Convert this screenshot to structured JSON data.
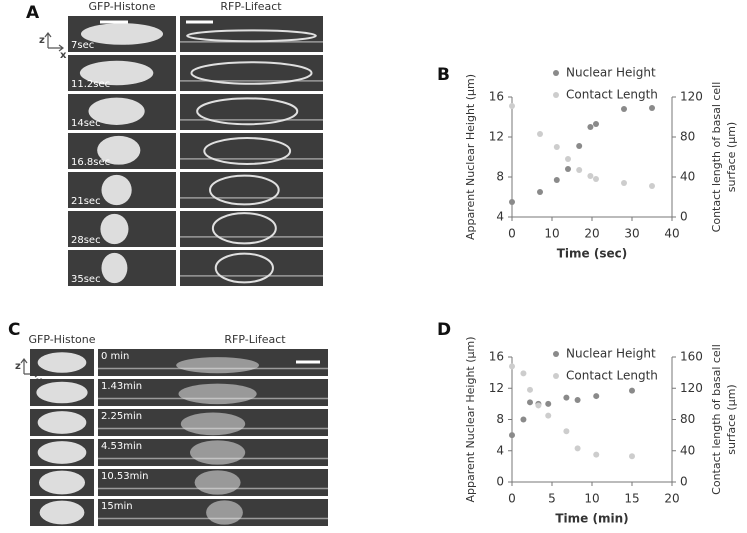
{
  "panels": [
    {
      "label": "A",
      "columns": [
        "GFP-Histone",
        "RFP-Lifeact"
      ],
      "times": [
        "7sec",
        "11.2sec",
        "14sec",
        "16.8sec",
        "21sec",
        "28sec",
        "35sec"
      ]
    },
    {
      "label": "C",
      "columns": [
        "GFP-Histone",
        "RFP-Lifeact"
      ],
      "times": [
        "0 min",
        "1.43min",
        "2.25min",
        "4.53min",
        "10.53min",
        "15min"
      ]
    }
  ],
  "axis_icon": [
    "z",
    "x"
  ],
  "chart_data": [
    {
      "type": "scatter",
      "label": "B",
      "xlabel": "Time (sec)",
      "ylabel": "Apparent Nuclear Height (µm)",
      "y2label": [
        "Contact length of basal cell",
        "surface (µm)"
      ],
      "x": [
        0,
        7,
        11.2,
        14,
        16.8,
        19.6,
        21,
        28,
        35
      ],
      "series": [
        {
          "name": "Nuclear Height",
          "color": "#8a8a8a",
          "values": [
            5.5,
            6.5,
            7.7,
            8.8,
            11.1,
            13,
            13.3,
            14.8,
            14.9
          ]
        },
        {
          "name": "Contact Length",
          "color": "#cdcdcd",
          "axis": "y2",
          "values": [
            111,
            83,
            70,
            58,
            47,
            41,
            38,
            34,
            31
          ]
        }
      ],
      "xlim": [
        0,
        40
      ],
      "xticks": [
        0,
        10,
        20,
        30,
        40
      ],
      "ylim": [
        4,
        16
      ],
      "yticks": [
        4,
        8,
        12,
        16
      ],
      "y2lim": [
        0,
        120
      ],
      "y2ticks": [
        0,
        40,
        80,
        120
      ]
    },
    {
      "type": "scatter",
      "label": "D",
      "xlabel": "Time (min)",
      "ylabel": "Apparent Nuclear Height (µm)",
      "y2label": [
        "Contact length of basal cell",
        "surface (µm)"
      ],
      "x": [
        0,
        1.43,
        2.25,
        3.3,
        4.53,
        6.8,
        8.2,
        10.53,
        15
      ],
      "series": [
        {
          "name": "Nuclear Height",
          "color": "#8a8a8a",
          "values": [
            6,
            8,
            10.2,
            10,
            10,
            10.8,
            10.5,
            11,
            11.7
          ]
        },
        {
          "name": "Contact Length",
          "color": "#cdcdcd",
          "axis": "y2",
          "values": [
            148,
            139,
            118,
            98,
            85,
            65,
            43,
            35,
            33
          ]
        }
      ],
      "xlim": [
        0,
        20
      ],
      "xticks": [
        0,
        5,
        10,
        15,
        20
      ],
      "ylim": [
        0,
        16
      ],
      "yticks": [
        0,
        4,
        8,
        12,
        16
      ],
      "y2lim": [
        0,
        160
      ],
      "y2ticks": [
        0,
        40,
        80,
        120,
        160
      ]
    }
  ]
}
